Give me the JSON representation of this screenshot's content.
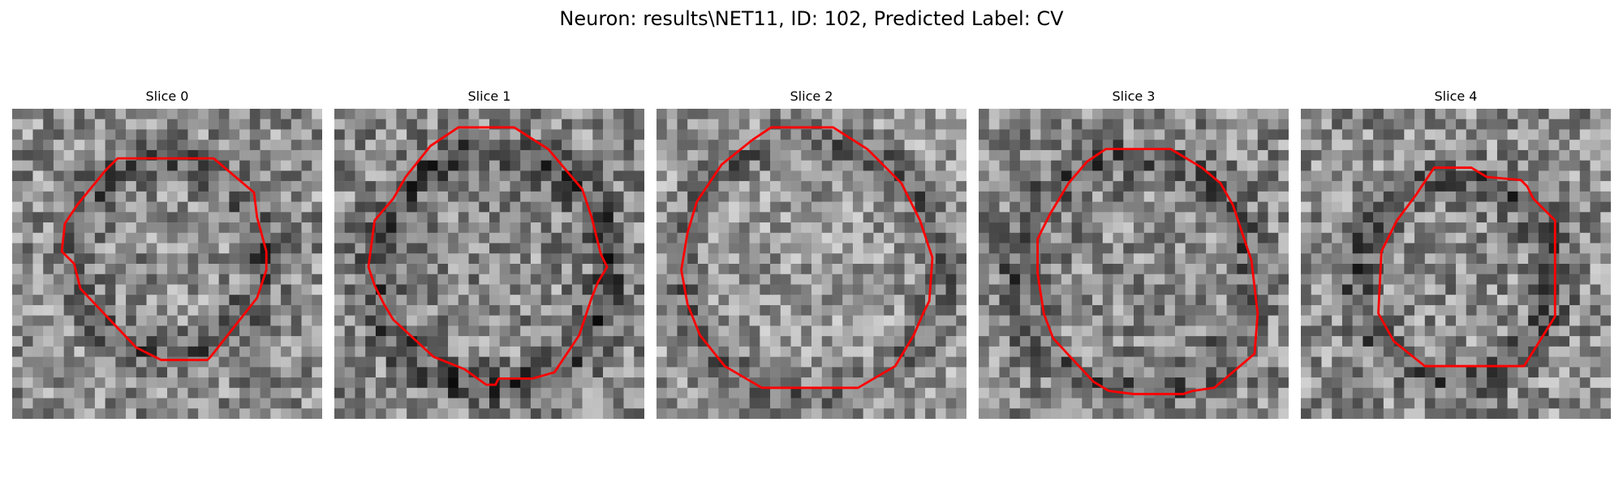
{
  "figure": {
    "title": "Neuron: results\\NET11, ID: 102, Predicted Label: CV"
  },
  "contour_color": "#ff0000",
  "slices": [
    {
      "title": "Slice 0",
      "seed": 11,
      "base": 0.56,
      "spread": 0.26,
      "rim_center": [
        0.5,
        0.47
      ],
      "rim_radius": 0.31,
      "rim_dark": 0.22,
      "contour": [
        [
          0.34,
          0.16
        ],
        [
          0.65,
          0.16
        ],
        [
          0.78,
          0.27
        ],
        [
          0.79,
          0.35
        ],
        [
          0.82,
          0.46
        ],
        [
          0.82,
          0.52
        ],
        [
          0.79,
          0.61
        ],
        [
          0.64,
          0.8
        ],
        [
          0.63,
          0.81
        ],
        [
          0.48,
          0.81
        ],
        [
          0.4,
          0.77
        ],
        [
          0.22,
          0.58
        ],
        [
          0.2,
          0.5
        ],
        [
          0.16,
          0.46
        ],
        [
          0.17,
          0.37
        ],
        [
          0.21,
          0.31
        ],
        [
          0.3,
          0.2
        ]
      ]
    },
    {
      "title": "Slice 1",
      "seed": 23,
      "base": 0.54,
      "spread": 0.26,
      "rim_center": [
        0.51,
        0.52
      ],
      "rim_radius": 0.38,
      "rim_dark": 0.24,
      "contour": [
        [
          0.4,
          0.06
        ],
        [
          0.58,
          0.06
        ],
        [
          0.69,
          0.13
        ],
        [
          0.8,
          0.26
        ],
        [
          0.83,
          0.35
        ],
        [
          0.86,
          0.47
        ],
        [
          0.88,
          0.51
        ],
        [
          0.85,
          0.56
        ],
        [
          0.83,
          0.61
        ],
        [
          0.79,
          0.73
        ],
        [
          0.71,
          0.85
        ],
        [
          0.64,
          0.87
        ],
        [
          0.53,
          0.87
        ],
        [
          0.52,
          0.89
        ],
        [
          0.49,
          0.89
        ],
        [
          0.42,
          0.84
        ],
        [
          0.32,
          0.8
        ],
        [
          0.19,
          0.68
        ],
        [
          0.16,
          0.63
        ],
        [
          0.13,
          0.57
        ],
        [
          0.11,
          0.51
        ],
        [
          0.13,
          0.36
        ],
        [
          0.19,
          0.29
        ],
        [
          0.23,
          0.22
        ],
        [
          0.31,
          0.12
        ]
      ]
    },
    {
      "title": "Slice 2",
      "seed": 37,
      "base": 0.6,
      "spread": 0.24,
      "rim_center": [
        0.5,
        0.52
      ],
      "rim_radius": 0.42,
      "rim_dark": 0.2,
      "contour": [
        [
          0.37,
          0.06
        ],
        [
          0.57,
          0.06
        ],
        [
          0.68,
          0.13
        ],
        [
          0.79,
          0.24
        ],
        [
          0.82,
          0.3
        ],
        [
          0.85,
          0.36
        ],
        [
          0.89,
          0.48
        ],
        [
          0.88,
          0.62
        ],
        [
          0.86,
          0.66
        ],
        [
          0.83,
          0.73
        ],
        [
          0.77,
          0.83
        ],
        [
          0.65,
          0.9
        ],
        [
          0.34,
          0.9
        ],
        [
          0.22,
          0.83
        ],
        [
          0.14,
          0.73
        ],
        [
          0.1,
          0.63
        ],
        [
          0.08,
          0.52
        ],
        [
          0.1,
          0.4
        ],
        [
          0.13,
          0.3
        ],
        [
          0.21,
          0.18
        ],
        [
          0.31,
          0.1
        ]
      ]
    },
    {
      "title": "Slice 3",
      "seed": 51,
      "base": 0.54,
      "spread": 0.26,
      "rim_center": [
        0.5,
        0.54
      ],
      "rim_radius": 0.38,
      "rim_dark": 0.18,
      "contour": [
        [
          0.41,
          0.13
        ],
        [
          0.62,
          0.13
        ],
        [
          0.72,
          0.19
        ],
        [
          0.78,
          0.24
        ],
        [
          0.82,
          0.31
        ],
        [
          0.85,
          0.4
        ],
        [
          0.88,
          0.49
        ],
        [
          0.9,
          0.66
        ],
        [
          0.89,
          0.79
        ],
        [
          0.76,
          0.9
        ],
        [
          0.69,
          0.91
        ],
        [
          0.66,
          0.92
        ],
        [
          0.5,
          0.92
        ],
        [
          0.42,
          0.91
        ],
        [
          0.37,
          0.88
        ],
        [
          0.24,
          0.74
        ],
        [
          0.21,
          0.66
        ],
        [
          0.19,
          0.53
        ],
        [
          0.19,
          0.42
        ],
        [
          0.23,
          0.34
        ],
        [
          0.29,
          0.24
        ],
        [
          0.35,
          0.17
        ]
      ]
    },
    {
      "title": "Slice 4",
      "seed": 67,
      "base": 0.56,
      "spread": 0.26,
      "rim_center": [
        0.5,
        0.55
      ],
      "rim_radius": 0.32,
      "rim_dark": 0.22,
      "contour": [
        [
          0.43,
          0.19
        ],
        [
          0.55,
          0.19
        ],
        [
          0.6,
          0.22
        ],
        [
          0.71,
          0.23
        ],
        [
          0.73,
          0.25
        ],
        [
          0.75,
          0.29
        ],
        [
          0.82,
          0.36
        ],
        [
          0.82,
          0.67
        ],
        [
          0.72,
          0.83
        ],
        [
          0.4,
          0.83
        ],
        [
          0.3,
          0.75
        ],
        [
          0.25,
          0.66
        ],
        [
          0.26,
          0.46
        ],
        [
          0.31,
          0.36
        ],
        [
          0.37,
          0.28
        ]
      ]
    }
  ]
}
